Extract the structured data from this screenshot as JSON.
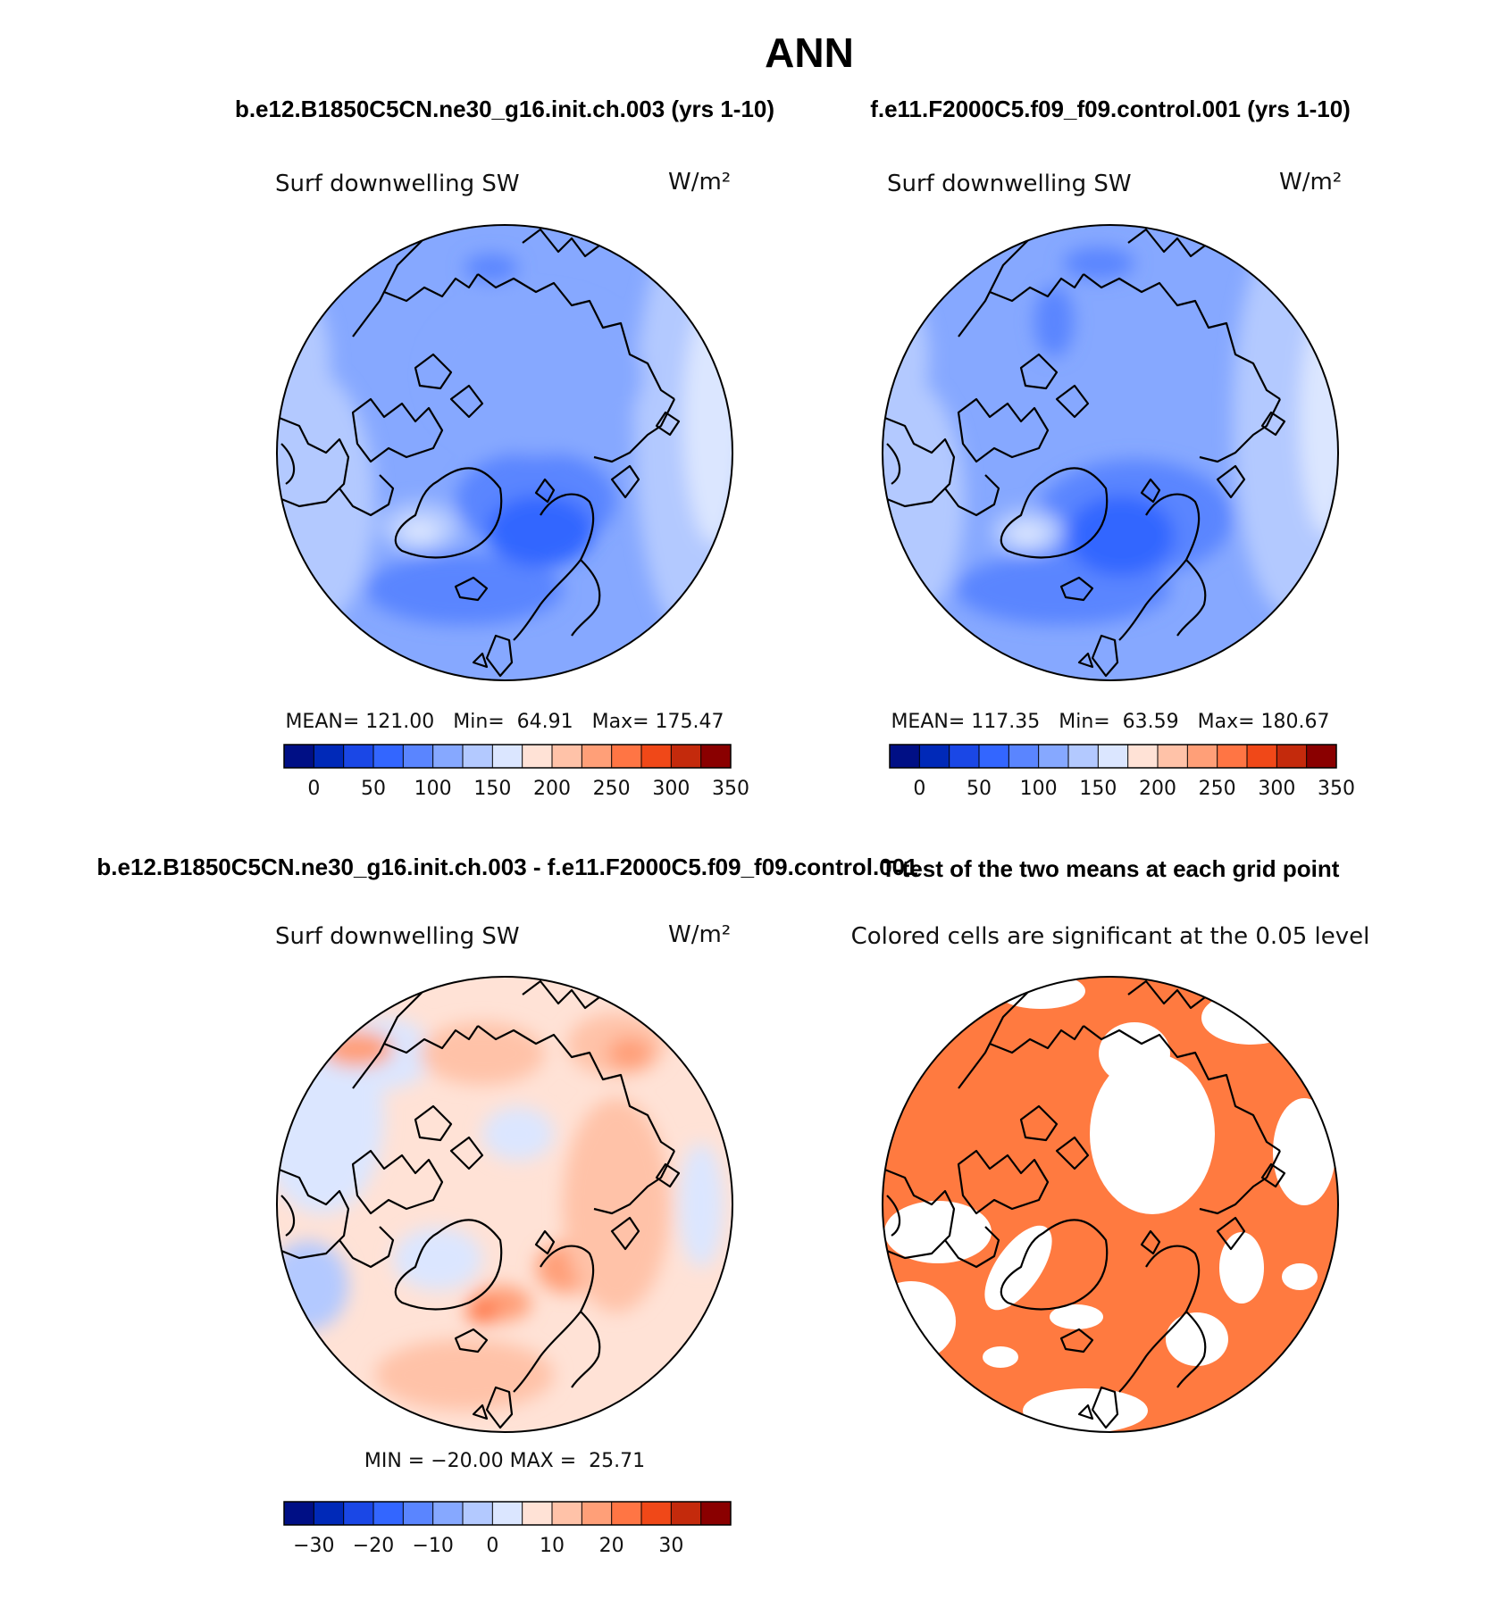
{
  "figure": {
    "season": "ANN",
    "case_a_title": "b.e12.B1850C5CN.ne30_g16.init.ch.003 (yrs 1-10)",
    "case_b_title": "f.e11.F2000C5.f09_f09.control.001 (yrs 1-10)",
    "diff_title": "b.e12.B1850C5CN.ne30_g16.init.ch.003 - f.e11.F2000C5.f09_f09.control.001",
    "ttest_title": "T-test of the two means at each grid point"
  },
  "panels": {
    "case_a": {
      "variable": "Surf downwelling SW",
      "units": "W/m²",
      "stats": "MEAN= 121.00   Min=  64.91   Max= 175.47"
    },
    "case_b": {
      "variable": "Surf downwelling SW",
      "units": "W/m²",
      "stats": "MEAN= 117.35   Min=  63.59   Max= 180.67"
    },
    "diff": {
      "variable": "Surf downwelling SW",
      "units": "W/m²",
      "stats": "MIN = −20.00 MAX =  25.71"
    },
    "ttest": {
      "subtitle": "Colored cells are significant at the 0.05 level",
      "significant_color": "#ff7a40"
    }
  },
  "chart_data": [
    {
      "type": "heatmap",
      "name": "case_a",
      "title": "Surf downwelling SW",
      "units": "W/m²",
      "colorbar_ticks": [
        "0",
        "50",
        "100",
        "150",
        "200",
        "250",
        "300",
        "350"
      ],
      "colorbar_colors": [
        "#000f85",
        "#0029b8",
        "#1a47e6",
        "#3366ff",
        "#5a85ff",
        "#86a8ff",
        "#b3c9ff",
        "#dbe6ff",
        "#ffe2d6",
        "#ffc2a8",
        "#ff9f78",
        "#ff7544",
        "#f04818",
        "#c42a0c",
        "#8a0000"
      ],
      "mean": 121.0,
      "min": 64.91,
      "max": 175.47
    },
    {
      "type": "heatmap",
      "name": "case_b",
      "title": "Surf downwelling SW",
      "units": "W/m²",
      "colorbar_ticks": [
        "0",
        "50",
        "100",
        "150",
        "200",
        "250",
        "300",
        "350"
      ],
      "colorbar_colors": [
        "#000f85",
        "#0029b8",
        "#1a47e6",
        "#3366ff",
        "#5a85ff",
        "#86a8ff",
        "#b3c9ff",
        "#dbe6ff",
        "#ffe2d6",
        "#ffc2a8",
        "#ff9f78",
        "#ff7544",
        "#f04818",
        "#c42a0c",
        "#8a0000"
      ],
      "mean": 117.35,
      "min": 63.59,
      "max": 180.67
    },
    {
      "type": "heatmap",
      "name": "difference",
      "title": "Surf downwelling SW",
      "units": "W/m²",
      "colorbar_ticks": [
        "−30",
        "−20",
        "−10",
        "0",
        "10",
        "20",
        "30"
      ],
      "colorbar_colors": [
        "#000f85",
        "#0029b8",
        "#1a47e6",
        "#3366ff",
        "#5a85ff",
        "#86a8ff",
        "#b3c9ff",
        "#dbe6ff",
        "#ffe2d6",
        "#ffc2a8",
        "#ff9f78",
        "#ff7544",
        "#f04818",
        "#c42a0c",
        "#8a0000"
      ],
      "min": -20.0,
      "max": 25.71
    },
    {
      "type": "heatmap",
      "name": "ttest",
      "title": "T-test of the two means at each grid point",
      "significance_level": 0.05
    }
  ]
}
